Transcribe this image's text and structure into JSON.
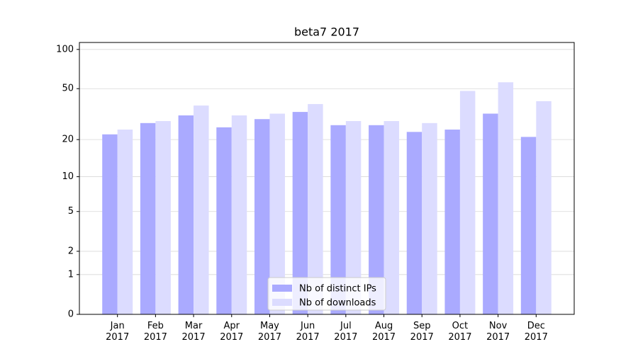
{
  "chart_data": {
    "type": "bar",
    "title": "beta7 2017",
    "categories": [
      "Jan 2017",
      "Feb 2017",
      "Mar 2017",
      "Apr 2017",
      "May 2017",
      "Jun 2017",
      "Jul 2017",
      "Aug 2017",
      "Sep 2017",
      "Oct 2017",
      "Nov 2017",
      "Dec 2017"
    ],
    "series": [
      {
        "name": "Nb of distinct IPs",
        "color": "#aaaaff",
        "values": [
          22,
          27,
          31,
          25,
          29,
          33,
          26,
          26,
          23,
          24,
          32,
          21
        ]
      },
      {
        "name": "Nb of downloads",
        "color": "#dcdcff",
        "values": [
          24,
          28,
          37,
          31,
          32,
          38,
          28,
          28,
          27,
          48,
          56,
          40
        ]
      }
    ],
    "yscale": "log1p",
    "ylim": [
      0,
      113
    ],
    "yticks": [
      0,
      1,
      2,
      5,
      10,
      20,
      50,
      100
    ],
    "grid": true,
    "legend": "lower center"
  }
}
